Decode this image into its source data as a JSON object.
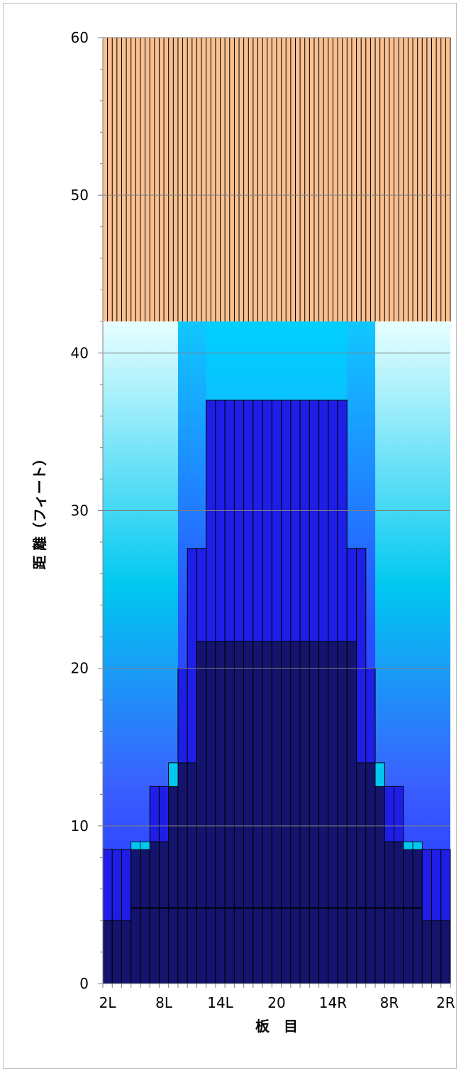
{
  "chart_data": {
    "type": "bar",
    "xlabel": "板　目",
    "ylabel": "距 離（フィート）",
    "ylim": [
      0,
      60
    ],
    "y_ticks": [
      0,
      10,
      20,
      30,
      40,
      50,
      60
    ],
    "y_tick_labels": [
      "0",
      "10",
      "20",
      "30",
      "40",
      "50",
      "60"
    ],
    "x_tick_labels": [
      "2L",
      "8L",
      "14L",
      "20",
      "14R",
      "8R",
      "2R"
    ],
    "grid": true,
    "board_count": 37,
    "overburden_top": 60,
    "overburden_bottom": 42,
    "bar_tops": [
      8.5,
      8.5,
      8.5,
      8.5,
      8.5,
      12.5,
      12.5,
      14,
      20,
      27.6,
      27.6,
      37,
      37,
      37,
      37,
      37,
      37,
      37,
      37,
      37,
      37,
      37,
      37,
      37,
      37,
      37,
      27.6,
      27.6,
      20,
      14,
      12.5,
      12.5,
      8.5,
      8.5,
      8.5,
      8.5,
      8.5
    ],
    "inner_tops": [
      4,
      4,
      4,
      8.5,
      8.5,
      9,
      9,
      12.5,
      14,
      14,
      21.7,
      21.7,
      21.7,
      21.7,
      21.7,
      21.7,
      21.7,
      21.7,
      21.7,
      21.7,
      21.7,
      21.7,
      21.7,
      21.7,
      21.7,
      21.7,
      21.7,
      14,
      14,
      12.5,
      9,
      9,
      8.5,
      8.5,
      4,
      4,
      4
    ],
    "base_line": 4.8,
    "colors": {
      "overburden": "#fac090",
      "deep": "#14146e",
      "mid": "#1e1ee6",
      "bright": "#2b50ff",
      "cyan": "#00c8f0",
      "pale": "#e0ffff",
      "grid": "#808080"
    }
  }
}
